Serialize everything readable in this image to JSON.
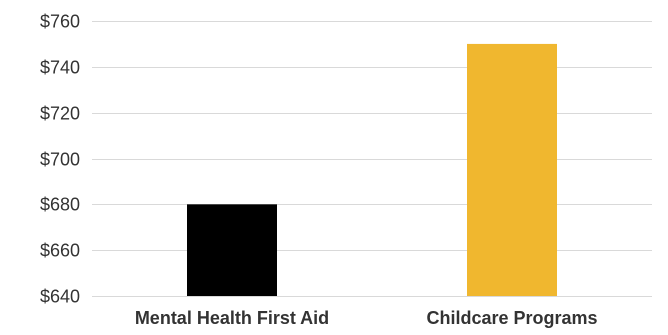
{
  "chart_data": {
    "type": "bar",
    "title": "",
    "xlabel": "",
    "ylabel": "",
    "categories": [
      "Mental Health First Aid",
      "Childcare Programs"
    ],
    "values": [
      680,
      750
    ],
    "colors": [
      "#000000",
      "#f0b72f"
    ],
    "ylim": [
      640,
      760
    ],
    "yticks": [
      640,
      660,
      680,
      700,
      720,
      740,
      760
    ],
    "ytick_labels": [
      "$640",
      "$660",
      "$680",
      "$700",
      "$720",
      "$740",
      "$760"
    ],
    "grid": true,
    "legend": "none"
  }
}
